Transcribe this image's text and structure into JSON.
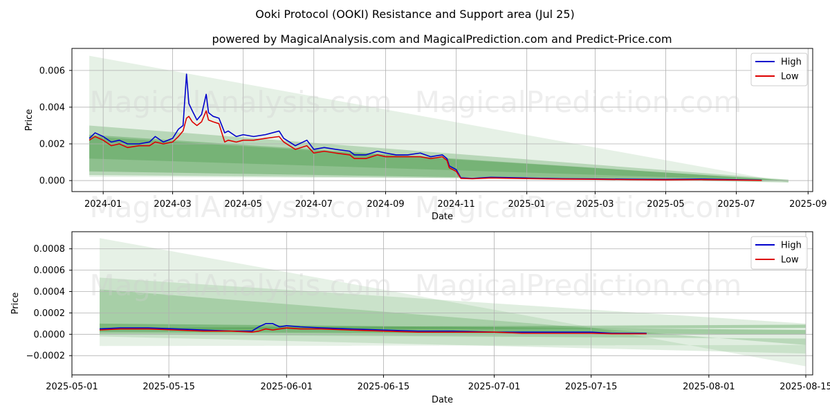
{
  "title": "Ooki Protocol (OOKI) Resistance and Support area (Jul 25)",
  "subtitle": "powered by MagicalAnalysis.com and MagicalPrediction.com and Predict-Price.com",
  "watermarks": [
    "MagicalAnalysis.com",
    "MagicalPrediction.com"
  ],
  "colors": {
    "high": "#0000cc",
    "low": "#dd0000",
    "band": "#2e8b2e"
  },
  "chart_data": [
    {
      "type": "line",
      "name": "top-panel",
      "xlabel": "Date",
      "ylabel": "Price",
      "grid": true,
      "legend": "top-right",
      "xlim": [
        "2023-12-05",
        "2025-09-05"
      ],
      "ylim": [
        -0.0006,
        0.0072
      ],
      "x_ticks": [
        "2024-01-01",
        "2024-03-01",
        "2024-05-01",
        "2024-07-01",
        "2024-09-01",
        "2024-11-01",
        "2025-01-01",
        "2025-03-01",
        "2025-05-01",
        "2025-07-01",
        "2025-09-01"
      ],
      "x_tick_labels": [
        "2024-01",
        "2024-03",
        "2024-05",
        "2024-07",
        "2024-09",
        "2024-11",
        "2025-01",
        "2025-03",
        "2025-05",
        "2025-07",
        "2025-09"
      ],
      "y_ticks": [
        0.0,
        0.002,
        0.004,
        0.006
      ],
      "y_tick_labels": [
        "0.000",
        "0.002",
        "0.004",
        "0.006"
      ],
      "series": [
        {
          "name": "High",
          "x": [
            "2023-12-20",
            "2023-12-25",
            "2024-01-01",
            "2024-01-08",
            "2024-01-15",
            "2024-01-22",
            "2024-02-01",
            "2024-02-10",
            "2024-02-15",
            "2024-02-22",
            "2024-03-01",
            "2024-03-06",
            "2024-03-10",
            "2024-03-13",
            "2024-03-15",
            "2024-03-18",
            "2024-03-22",
            "2024-03-26",
            "2024-03-30",
            "2024-04-01",
            "2024-04-05",
            "2024-04-10",
            "2024-04-15",
            "2024-04-18",
            "2024-04-25",
            "2024-05-01",
            "2024-05-10",
            "2024-05-20",
            "2024-06-01",
            "2024-06-05",
            "2024-06-10",
            "2024-06-15",
            "2024-06-25",
            "2024-07-01",
            "2024-07-10",
            "2024-07-20",
            "2024-08-01",
            "2024-08-05",
            "2024-08-15",
            "2024-08-25",
            "2024-09-01",
            "2024-09-10",
            "2024-09-20",
            "2024-10-01",
            "2024-10-10",
            "2024-10-20",
            "2024-10-24",
            "2024-10-26",
            "2024-11-01",
            "2024-11-05",
            "2024-11-15",
            "2024-12-01",
            "2025-01-01",
            "2025-02-01",
            "2025-03-01",
            "2025-04-01",
            "2025-05-01",
            "2025-06-01",
            "2025-07-01",
            "2025-07-23"
          ],
          "y": [
            0.0023,
            0.0026,
            0.0024,
            0.0021,
            0.0022,
            0.002,
            0.002,
            0.0021,
            0.0024,
            0.0021,
            0.0023,
            0.0028,
            0.003,
            0.0058,
            0.0042,
            0.0038,
            0.0033,
            0.0036,
            0.0047,
            0.0037,
            0.0035,
            0.0034,
            0.0026,
            0.0027,
            0.0024,
            0.0025,
            0.0024,
            0.0025,
            0.0027,
            0.0023,
            0.0021,
            0.0019,
            0.0022,
            0.0017,
            0.0018,
            0.0017,
            0.0016,
            0.0014,
            0.0014,
            0.0016,
            0.0015,
            0.0014,
            0.0014,
            0.0015,
            0.0013,
            0.0014,
            0.0012,
            0.0008,
            0.0006,
            0.00015,
            0.00012,
            0.00018,
            0.00014,
            0.0001,
            9e-05,
            7e-05,
            6e-05,
            8e-05,
            5e-05,
            2e-05
          ]
        },
        {
          "name": "Low",
          "x": [
            "2023-12-20",
            "2023-12-25",
            "2024-01-01",
            "2024-01-08",
            "2024-01-15",
            "2024-01-22",
            "2024-02-01",
            "2024-02-10",
            "2024-02-15",
            "2024-02-22",
            "2024-03-01",
            "2024-03-06",
            "2024-03-10",
            "2024-03-13",
            "2024-03-15",
            "2024-03-18",
            "2024-03-22",
            "2024-03-26",
            "2024-03-30",
            "2024-04-01",
            "2024-04-05",
            "2024-04-10",
            "2024-04-15",
            "2024-04-18",
            "2024-04-25",
            "2024-05-01",
            "2024-05-10",
            "2024-05-20",
            "2024-06-01",
            "2024-06-05",
            "2024-06-10",
            "2024-06-15",
            "2024-06-25",
            "2024-07-01",
            "2024-07-10",
            "2024-07-20",
            "2024-08-01",
            "2024-08-05",
            "2024-08-15",
            "2024-08-25",
            "2024-09-01",
            "2024-09-10",
            "2024-09-20",
            "2024-10-01",
            "2024-10-10",
            "2024-10-20",
            "2024-10-24",
            "2024-10-26",
            "2024-11-01",
            "2024-11-05",
            "2024-11-15",
            "2024-12-01",
            "2025-01-01",
            "2025-02-01",
            "2025-03-01",
            "2025-04-01",
            "2025-05-01",
            "2025-06-01",
            "2025-07-01",
            "2025-07-23"
          ],
          "y": [
            0.0022,
            0.0024,
            0.0022,
            0.0019,
            0.002,
            0.0018,
            0.0019,
            0.0019,
            0.0021,
            0.002,
            0.0021,
            0.0024,
            0.0027,
            0.0034,
            0.0035,
            0.0032,
            0.003,
            0.0032,
            0.0038,
            0.0033,
            0.0032,
            0.0031,
            0.0021,
            0.0022,
            0.0021,
            0.0022,
            0.0022,
            0.0023,
            0.0024,
            0.0021,
            0.0019,
            0.0017,
            0.0019,
            0.0015,
            0.0016,
            0.0015,
            0.0014,
            0.0012,
            0.0012,
            0.0014,
            0.0013,
            0.0013,
            0.0013,
            0.0013,
            0.0012,
            0.0013,
            0.0011,
            0.0007,
            0.0005,
            0.00012,
            0.0001,
            0.00014,
            0.00011,
            8e-05,
            7e-05,
            5e-05,
            4e-05,
            5e-05,
            3e-05,
            1e-05
          ]
        }
      ],
      "bands": [
        {
          "x0": "2023-12-20",
          "x1": "2025-08-15",
          "top": [
            0.0068,
            -0.0001
          ],
          "bottom": [
            0.0002,
            5e-05
          ],
          "opacity": 0.12
        },
        {
          "x0": "2023-12-20",
          "x1": "2025-08-15",
          "top": [
            0.003,
            5e-05
          ],
          "bottom": [
            0.0003,
            0.0
          ],
          "opacity": 0.25
        },
        {
          "x0": "2023-12-20",
          "x1": "2025-08-15",
          "top": [
            0.0025,
            0.0
          ],
          "bottom": [
            0.0005,
            -0.0001
          ],
          "opacity": 0.3
        },
        {
          "x0": "2023-12-20",
          "x1": "2025-08-15",
          "top": [
            0.0024,
            2e-05
          ],
          "bottom": [
            0.0012,
            -2e-05
          ],
          "opacity": 0.25
        }
      ]
    },
    {
      "type": "line",
      "name": "bottom-panel",
      "xlabel": "Date",
      "ylabel": "Price",
      "grid": true,
      "legend": "top-right",
      "xlim": [
        "2025-05-01",
        "2025-08-16"
      ],
      "ylim": [
        -0.00038,
        0.00096
      ],
      "x_ticks": [
        "2025-05-01",
        "2025-05-15",
        "2025-06-01",
        "2025-06-15",
        "2025-07-01",
        "2025-07-15",
        "2025-08-01",
        "2025-08-15"
      ],
      "x_tick_labels": [
        "2025-05-01",
        "2025-05-15",
        "2025-06-01",
        "2025-06-15",
        "2025-07-01",
        "2025-07-15",
        "2025-08-01",
        "2025-08-15"
      ],
      "y_ticks": [
        -0.0002,
        0.0,
        0.0002,
        0.0004,
        0.0006,
        0.0008
      ],
      "y_tick_labels": [
        "−0.0002",
        "0.0000",
        "0.0002",
        "0.0004",
        "0.0006",
        "0.0008"
      ],
      "series": [
        {
          "name": "High",
          "x": [
            "2025-05-05",
            "2025-05-08",
            "2025-05-12",
            "2025-05-16",
            "2025-05-20",
            "2025-05-24",
            "2025-05-27",
            "2025-05-28",
            "2025-05-29",
            "2025-05-30",
            "2025-05-31",
            "2025-06-01",
            "2025-06-03",
            "2025-06-06",
            "2025-06-10",
            "2025-06-15",
            "2025-06-20",
            "2025-06-25",
            "2025-07-01",
            "2025-07-05",
            "2025-07-10",
            "2025-07-15",
            "2025-07-18",
            "2025-07-20",
            "2025-07-23"
          ],
          "y": [
            5e-05,
            6e-05,
            6e-05,
            5e-05,
            4e-05,
            3e-05,
            3e-05,
            7e-05,
            0.0001,
            0.0001,
            7e-05,
            8e-05,
            7e-05,
            6e-05,
            5e-05,
            4e-05,
            3e-05,
            3e-05,
            2e-05,
            2e-05,
            2e-05,
            2e-05,
            1e-05,
            1e-05,
            1e-05
          ]
        },
        {
          "name": "Low",
          "x": [
            "2025-05-05",
            "2025-05-08",
            "2025-05-12",
            "2025-05-16",
            "2025-05-20",
            "2025-05-24",
            "2025-05-27",
            "2025-05-28",
            "2025-05-29",
            "2025-05-30",
            "2025-05-31",
            "2025-06-01",
            "2025-06-03",
            "2025-06-06",
            "2025-06-10",
            "2025-06-15",
            "2025-06-20",
            "2025-06-25",
            "2025-07-01",
            "2025-07-05",
            "2025-07-10",
            "2025-07-15",
            "2025-07-18",
            "2025-07-20",
            "2025-07-23"
          ],
          "y": [
            4e-05,
            5e-05,
            5e-05,
            4e-05,
            3e-05,
            3e-05,
            2e-05,
            3e-05,
            5e-05,
            4e-05,
            5e-05,
            6e-05,
            5e-05,
            5e-05,
            4e-05,
            3e-05,
            2e-05,
            2e-05,
            2e-05,
            1e-05,
            1e-05,
            1e-05,
            5e-06,
            5e-06,
            5e-06
          ]
        }
      ],
      "bands": [
        {
          "x0": "2025-05-05",
          "x1": "2025-08-15",
          "top": [
            0.0009,
            -0.0003
          ],
          "bottom": [
            -0.00011,
            -0.0001
          ],
          "opacity": 0.12
        },
        {
          "x0": "2025-05-05",
          "x1": "2025-08-15",
          "top": [
            0.00053,
            0.0001
          ],
          "bottom": [
            -2e-05,
            -0.00018
          ],
          "opacity": 0.15
        },
        {
          "x0": "2025-05-05",
          "x1": "2025-08-15",
          "top": [
            0.00042,
            -0.0001
          ],
          "bottom": [
            0.0,
            -4e-05
          ],
          "opacity": 0.22
        },
        {
          "x0": "2025-05-05",
          "x1": "2025-08-15",
          "top": [
            0.0001,
            4e-05
          ],
          "bottom": [
            2e-05,
            0.0
          ],
          "opacity": 0.35
        },
        {
          "x0": "2025-05-05",
          "x1": "2025-08-15",
          "top": [
            6e-05,
            9e-05
          ],
          "bottom": [
            4e-05,
            6e-05
          ],
          "opacity": 0.3
        }
      ]
    }
  ]
}
